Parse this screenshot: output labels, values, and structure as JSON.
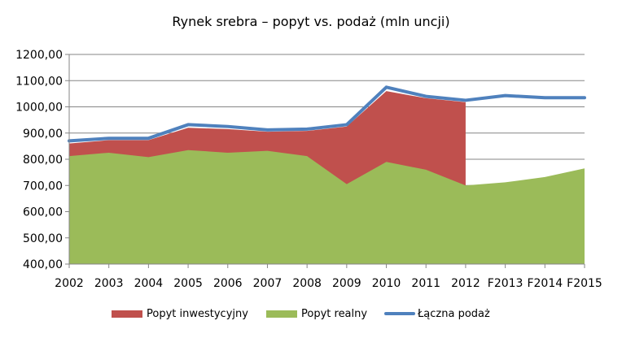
{
  "chart_data": {
    "type": "area",
    "title": "Rynek srebra – popyt vs. podaż (mln uncji)",
    "xlabel": "",
    "ylabel": "",
    "ylim": [
      400,
      1200
    ],
    "yticks": [
      "400,00",
      "500,00",
      "600,00",
      "700,00",
      "800,00",
      "900,00",
      "1000,00",
      "1100,00",
      "1200,00"
    ],
    "categories": [
      "2002",
      "2003",
      "2004",
      "2005",
      "2006",
      "2007",
      "2008",
      "2009",
      "2010",
      "2011",
      "2012",
      "F2013",
      "F2014",
      "F2015"
    ],
    "grid": true,
    "legend_position": "bottom",
    "series": [
      {
        "name": "Popyt inwestycyjny",
        "kind": "stacked-area-top",
        "color": "#C0504D",
        "values": [
          860,
          873,
          873,
          920,
          915,
          905,
          908,
          925,
          1060,
          1033,
          1018,
          null,
          null,
          null
        ]
      },
      {
        "name": "Popyt realny",
        "kind": "area",
        "color": "#9BBB59",
        "values": [
          812,
          825,
          808,
          835,
          825,
          832,
          812,
          705,
          790,
          760,
          700,
          712,
          732,
          765
        ]
      },
      {
        "name": "Łączna podaż",
        "kind": "line",
        "color": "#4F81BD",
        "values": [
          870,
          880,
          880,
          932,
          925,
          912,
          915,
          932,
          1075,
          1040,
          1025,
          1043,
          1035,
          1035
        ]
      }
    ]
  },
  "legend": {
    "items": [
      {
        "label": "Popyt inwestycyjny",
        "color": "#C0504D"
      },
      {
        "label": "Popyt realny",
        "color": "#9BBB59"
      },
      {
        "label": "Łączna podaż",
        "color": "#4F81BD"
      }
    ]
  }
}
